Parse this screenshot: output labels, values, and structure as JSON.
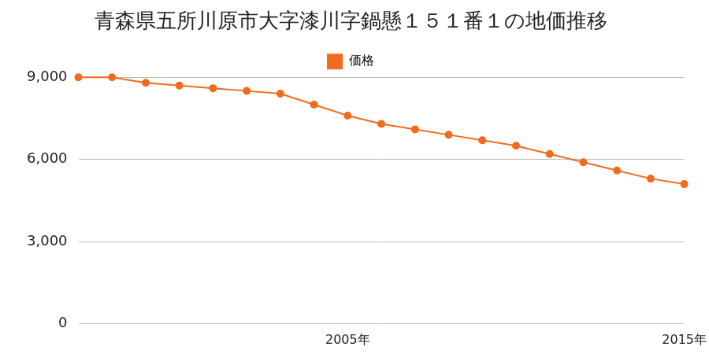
{
  "chart_data": {
    "type": "line",
    "title": "青森県五所川原市大字漆川字鍋懸１５１番１の地価推移",
    "categories": [
      null,
      null,
      null,
      null,
      null,
      null,
      null,
      null,
      "2005年",
      null,
      null,
      null,
      null,
      null,
      null,
      null,
      null,
      null,
      "2015年"
    ],
    "series": [
      {
        "name": "価格",
        "color": "#f26b1d",
        "values": [
          9000,
          9000,
          8800,
          8700,
          8600,
          8500,
          8400,
          8000,
          7600,
          7300,
          7100,
          6900,
          6700,
          6500,
          6200,
          5900,
          5600,
          5300,
          5100
        ]
      }
    ],
    "ylim": [
      0,
      9000
    ],
    "yticks": [
      0,
      {
        "value": 3000,
        "label": "3,000"
      },
      {
        "value": 6000,
        "label": "6,000"
      },
      {
        "value": 9000,
        "label": "9,000"
      }
    ],
    "grid": true,
    "legend": "top",
    "marker": "circle"
  }
}
